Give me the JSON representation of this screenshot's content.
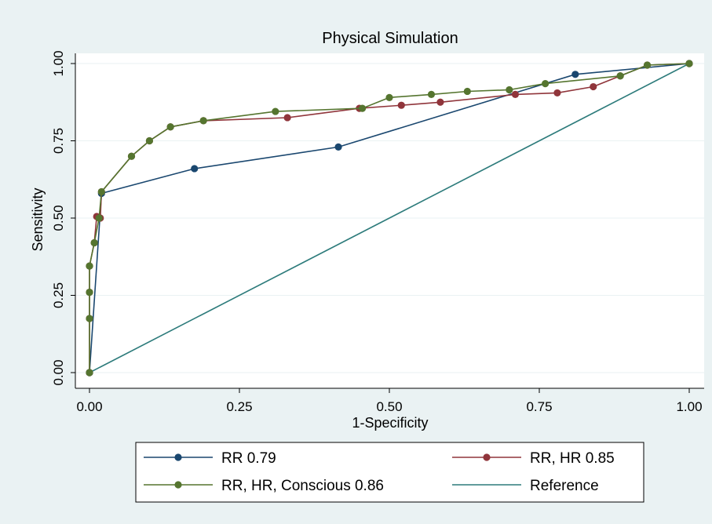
{
  "chart_data": {
    "type": "line",
    "title": "Physical Simulation",
    "xlabel": "1-Specificity",
    "ylabel": "Sensitivity",
    "xlim": [
      0,
      1
    ],
    "ylim": [
      0,
      1
    ],
    "x_ticks": [
      "0.00",
      "0.25",
      "0.50",
      "0.75",
      "1.00"
    ],
    "y_ticks": [
      "0.00",
      "0.25",
      "0.50",
      "0.75",
      "1.00"
    ],
    "grid": "horizontal",
    "legend_position": "bottom",
    "legend_columns": 2,
    "series": [
      {
        "name": "RR 0.79",
        "color": "#1a476f",
        "markers": true,
        "x": [
          0.0,
          0.0,
          0.02,
          0.175,
          0.415,
          0.81,
          1.0
        ],
        "y": [
          0.0,
          0.0,
          0.58,
          0.66,
          0.73,
          0.965,
          1.0
        ]
      },
      {
        "name": "RR, HR 0.85",
        "color": "#90353b",
        "markers": true,
        "x": [
          0.0,
          0.0,
          0.0,
          0.0,
          0.008,
          0.012,
          0.018,
          0.02,
          0.07,
          0.1,
          0.135,
          0.19,
          0.33,
          0.45,
          0.52,
          0.585,
          0.71,
          0.78,
          0.84,
          0.885,
          0.93,
          1.0
        ],
        "y": [
          0.0,
          0.175,
          0.26,
          0.345,
          0.42,
          0.505,
          0.5,
          0.585,
          0.7,
          0.75,
          0.795,
          0.815,
          0.825,
          0.855,
          0.865,
          0.875,
          0.9,
          0.905,
          0.925,
          0.96,
          0.995,
          1.0
        ]
      },
      {
        "name": "RR, HR, Conscious 0.86",
        "color": "#55752f",
        "markers": true,
        "x": [
          0.0,
          0.0,
          0.0,
          0.0,
          0.008,
          0.016,
          0.02,
          0.07,
          0.1,
          0.135,
          0.19,
          0.31,
          0.455,
          0.5,
          0.57,
          0.63,
          0.7,
          0.76,
          0.885,
          0.93,
          1.0
        ],
        "y": [
          0.0,
          0.175,
          0.26,
          0.345,
          0.42,
          0.5,
          0.585,
          0.7,
          0.75,
          0.795,
          0.815,
          0.845,
          0.855,
          0.89,
          0.9,
          0.91,
          0.915,
          0.935,
          0.96,
          0.995,
          1.0
        ]
      },
      {
        "name": "Reference",
        "color": "#2d7b7b",
        "markers": false,
        "x": [
          0.0,
          1.0
        ],
        "y": [
          0.0,
          1.0
        ]
      }
    ]
  }
}
